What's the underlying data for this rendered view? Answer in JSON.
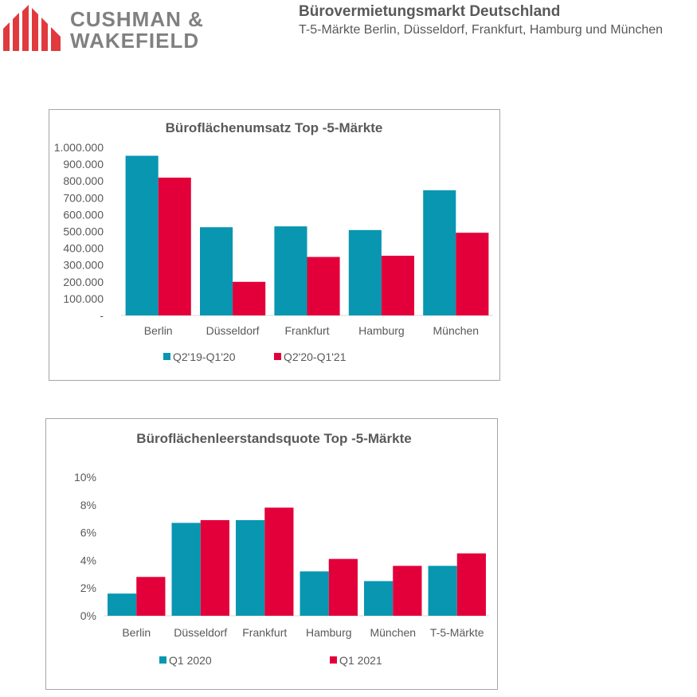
{
  "header": {
    "logo_line1": "CUSHMAN &",
    "logo_line2": "WAKEFIELD",
    "title": "Bürovermietungsmarkt Deutschland",
    "subtitle": "T-5-Märkte Berlin, Düsseldorf, Frankfurt, Hamburg und München"
  },
  "colors": {
    "series1": "#0896b1",
    "series2": "#e3003a",
    "logo": "#e03a3e"
  },
  "chart_data": [
    {
      "type": "bar",
      "title": "Büroflächenumsatz Top  -5-Märkte",
      "categories": [
        "Berlin",
        "Düsseldorf",
        "Frankfurt",
        "Hamburg",
        "München"
      ],
      "series": [
        {
          "name": "Q2'19-Q1'20",
          "values": [
            950000,
            525000,
            530000,
            508000,
            745000
          ]
        },
        {
          "name": "Q2'20-Q1'21",
          "values": [
            820000,
            200000,
            348000,
            355000,
            492000
          ]
        }
      ],
      "ylim": [
        0,
        1000000
      ],
      "yticks": [
        0,
        100000,
        200000,
        300000,
        400000,
        500000,
        600000,
        700000,
        800000,
        900000,
        1000000
      ],
      "ytick_labels": [
        "-",
        "100.000",
        "200.000",
        "300.000",
        "400.000",
        "500.000",
        "600.000",
        "700.000",
        "800.000",
        "900.000",
        "1.000.000"
      ],
      "grid": false,
      "legend": "bottom"
    },
    {
      "type": "bar",
      "title": "Büroflächenleerstandsquote Top  -5-Märkte",
      "categories": [
        "Berlin",
        "Düsseldorf",
        "Frankfurt",
        "Hamburg",
        "München",
        "T-5-Märkte"
      ],
      "series": [
        {
          "name": "Q1 2020",
          "values": [
            1.6,
            6.7,
            6.9,
            3.2,
            2.5,
            3.6
          ]
        },
        {
          "name": "Q1 2021",
          "values": [
            2.8,
            6.9,
            7.8,
            4.1,
            3.6,
            4.5
          ]
        }
      ],
      "ylim": [
        0,
        10
      ],
      "yticks": [
        0,
        2,
        4,
        6,
        8,
        10
      ],
      "ytick_labels": [
        "0%",
        "2%",
        "4%",
        "6%",
        "8%",
        "10%"
      ],
      "grid": false,
      "legend": "bottom"
    }
  ]
}
